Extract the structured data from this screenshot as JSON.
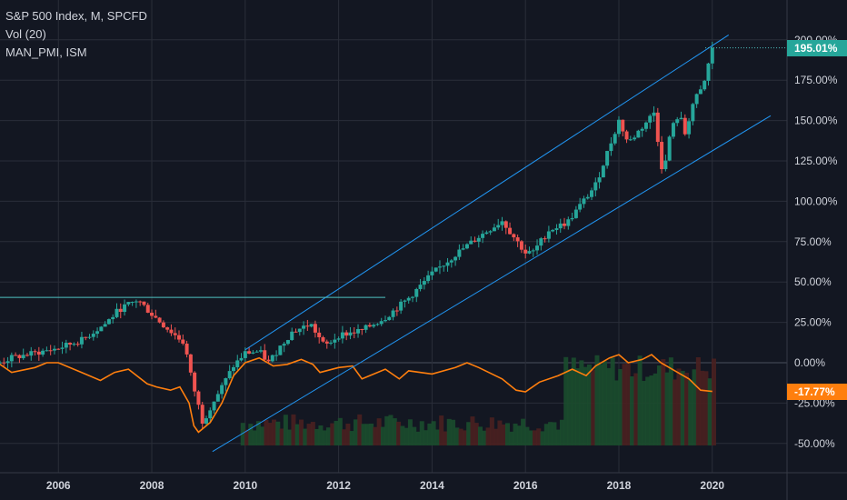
{
  "legend": {
    "line1": "S&P 500 Index, M, SPCFD",
    "line2": "Vol (20)",
    "line3": "MAN_PMI, ISM"
  },
  "last_value_label": "195.01%",
  "pmi_value_label": "-17.77%",
  "colors": {
    "background": "#131722",
    "grid": "#2a2e39",
    "up": "#26a69a",
    "down": "#ef5350",
    "pmi": "#ff7f0e",
    "channel": "#2196f3",
    "hline": "#4fc3c3",
    "vol_up": "#1b4d2e",
    "vol_down": "#4a2020"
  },
  "chart_data": {
    "type": "candlestick",
    "xlabel": "",
    "ylabel": "",
    "x_tick_labels": [
      "2006",
      "2008",
      "2010",
      "2012",
      "2014",
      "2016",
      "2018",
      "2020"
    ],
    "y_tick_labels": [
      "200.00%",
      "175.00%",
      "150.00%",
      "125.00%",
      "100.00%",
      "75.00%",
      "50.00%",
      "25.00%",
      "0.00%",
      "-25.00%",
      "-50.00%"
    ],
    "ylim": [
      -58,
      210
    ],
    "xlim": [
      2004.75,
      2021.6
    ],
    "grid": true,
    "series": [
      {
        "name": "S&P 500 Index",
        "kind": "monthly candles (% change)",
        "last": 195.01,
        "points": [
          [
            2004.75,
            0
          ],
          [
            2005.0,
            3
          ],
          [
            2005.5,
            6
          ],
          [
            2006.0,
            9
          ],
          [
            2006.5,
            14
          ],
          [
            2007.0,
            24
          ],
          [
            2007.3,
            33
          ],
          [
            2007.7,
            39
          ],
          [
            2008.0,
            30
          ],
          [
            2008.3,
            22
          ],
          [
            2008.7,
            12
          ],
          [
            2008.85,
            -10
          ],
          [
            2009.1,
            -38
          ],
          [
            2009.2,
            -30
          ],
          [
            2009.5,
            -15
          ],
          [
            2009.75,
            -2
          ],
          [
            2010.0,
            6
          ],
          [
            2010.3,
            7
          ],
          [
            2010.5,
            0
          ],
          [
            2010.75,
            10
          ],
          [
            2011.0,
            19
          ],
          [
            2011.4,
            24
          ],
          [
            2011.7,
            10
          ],
          [
            2012.0,
            17
          ],
          [
            2012.5,
            20
          ],
          [
            2013.0,
            28
          ],
          [
            2013.5,
            40
          ],
          [
            2014.0,
            55
          ],
          [
            2014.5,
            67
          ],
          [
            2015.0,
            78
          ],
          [
            2015.5,
            88
          ],
          [
            2015.75,
            78
          ],
          [
            2016.0,
            68
          ],
          [
            2016.15,
            68
          ],
          [
            2016.5,
            82
          ],
          [
            2016.9,
            87
          ],
          [
            2017.5,
            110
          ],
          [
            2018.0,
            150
          ],
          [
            2018.2,
            136
          ],
          [
            2018.5,
            146
          ],
          [
            2018.75,
            155
          ],
          [
            2018.95,
            115
          ],
          [
            2019.1,
            143
          ],
          [
            2019.3,
            155
          ],
          [
            2019.4,
            140
          ],
          [
            2019.6,
            162
          ],
          [
            2019.8,
            170
          ],
          [
            2020.0,
            195
          ]
        ]
      },
      {
        "name": "MAN_PMI, ISM",
        "kind": "line",
        "last": -17.77,
        "points": [
          [
            2004.75,
            -1
          ],
          [
            2005.0,
            -6
          ],
          [
            2005.5,
            -3
          ],
          [
            2005.75,
            0
          ],
          [
            2006.0,
            0
          ],
          [
            2006.5,
            -6
          ],
          [
            2006.9,
            -11
          ],
          [
            2007.2,
            -6
          ],
          [
            2007.5,
            -4
          ],
          [
            2007.9,
            -13
          ],
          [
            2008.1,
            -15
          ],
          [
            2008.4,
            -17
          ],
          [
            2008.6,
            -15
          ],
          [
            2008.8,
            -25
          ],
          [
            2008.9,
            -39
          ],
          [
            2009.0,
            -43
          ],
          [
            2009.25,
            -37
          ],
          [
            2009.5,
            -25
          ],
          [
            2009.75,
            -8
          ],
          [
            2010.0,
            0
          ],
          [
            2010.3,
            3
          ],
          [
            2010.6,
            -2
          ],
          [
            2010.9,
            -1
          ],
          [
            2011.2,
            2
          ],
          [
            2011.45,
            -1
          ],
          [
            2011.6,
            -6
          ],
          [
            2012.0,
            -3
          ],
          [
            2012.3,
            -2
          ],
          [
            2012.5,
            -10
          ],
          [
            2013.0,
            -4
          ],
          [
            2013.3,
            -10
          ],
          [
            2013.5,
            -5
          ],
          [
            2014.0,
            -7
          ],
          [
            2014.5,
            -3
          ],
          [
            2014.75,
            0
          ],
          [
            2015.0,
            -3
          ],
          [
            2015.5,
            -10
          ],
          [
            2015.8,
            -17
          ],
          [
            2016.0,
            -18
          ],
          [
            2016.3,
            -12
          ],
          [
            2016.7,
            -8
          ],
          [
            2017.0,
            -4
          ],
          [
            2017.3,
            -8
          ],
          [
            2017.5,
            -2
          ],
          [
            2017.8,
            3
          ],
          [
            2018.0,
            5
          ],
          [
            2018.2,
            0
          ],
          [
            2018.5,
            2
          ],
          [
            2018.7,
            5
          ],
          [
            2018.9,
            0
          ],
          [
            2019.2,
            -5
          ],
          [
            2019.5,
            -10
          ],
          [
            2019.75,
            -17
          ],
          [
            2020.0,
            -17.77
          ]
        ]
      }
    ],
    "channel": {
      "upper": [
        [
          2010.0,
          8
        ],
        [
          2020.35,
          203
        ]
      ],
      "lower": [
        [
          2009.3,
          -55
        ],
        [
          2021.25,
          153
        ]
      ]
    },
    "horizontal_lines": [
      {
        "y": 40.5,
        "x_from": 2004.75,
        "x_to": 2013.0
      },
      {
        "y": 195.01,
        "x_from": 2019.85,
        "x_to": 2021.6
      }
    ]
  }
}
